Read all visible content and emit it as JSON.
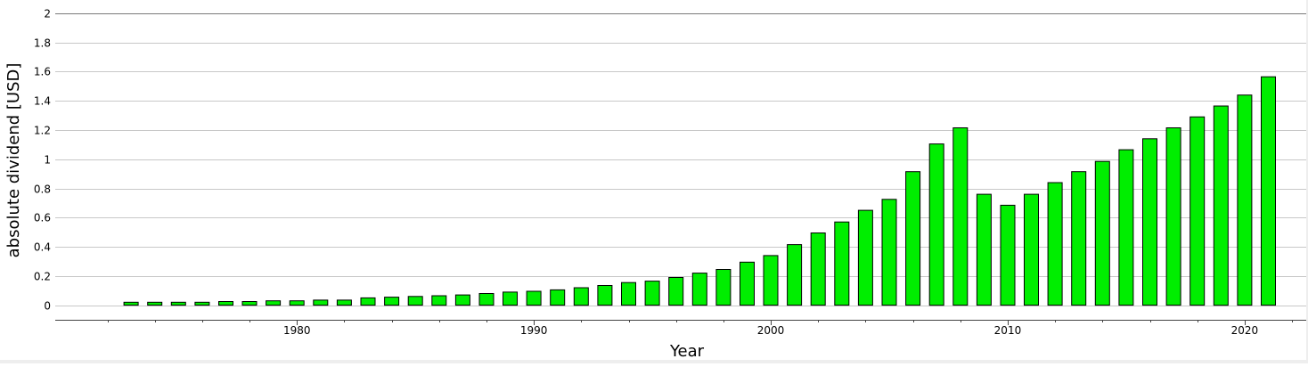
{
  "chart_data": {
    "type": "bar",
    "xlabel": "Year",
    "ylabel": "absolute dividend [USD]",
    "ylim": [
      -0.1,
      2.03
    ],
    "xlim": [
      1969.8,
      2022.6
    ],
    "yticks": [
      0,
      0.2,
      0.4,
      0.6,
      0.8,
      1,
      1.2,
      1.4,
      1.6,
      1.8,
      2
    ],
    "ytick_labels": [
      "0",
      "0.2",
      "0.4",
      "0.6",
      "0.8",
      "1",
      "1.2",
      "1.4",
      "1.6",
      "1.8",
      "2"
    ],
    "xticks": [
      1980,
      1990,
      2000,
      2010,
      2020
    ],
    "xtick_labels": [
      "1980",
      "1990",
      "2000",
      "2010",
      "2020"
    ],
    "grid": true,
    "bar_color": "#00ee00",
    "series": [
      {
        "x": [
          1973,
          1974,
          1975,
          1976,
          1977,
          1978,
          1979,
          1980,
          1981,
          1982,
          1983,
          1984,
          1985,
          1986,
          1987,
          1988,
          1989,
          1990,
          1991,
          1992,
          1993,
          1994,
          1995,
          1996,
          1997,
          1998,
          1999,
          2000,
          2001,
          2002,
          2003,
          2004,
          2005,
          2006,
          2007,
          2008,
          2009,
          2010,
          2011,
          2012,
          2013,
          2014,
          2015,
          2016,
          2017,
          2018,
          2019,
          2020,
          2021
        ],
        "values": [
          0.02,
          0.02,
          0.02,
          0.02,
          0.025,
          0.025,
          0.03,
          0.03,
          0.035,
          0.035,
          0.05,
          0.055,
          0.06,
          0.065,
          0.07,
          0.08,
          0.09,
          0.095,
          0.105,
          0.12,
          0.135,
          0.155,
          0.165,
          0.19,
          0.22,
          0.245,
          0.295,
          0.34,
          0.415,
          0.495,
          0.57,
          0.65,
          0.725,
          0.915,
          1.105,
          1.215,
          0.76,
          0.685,
          0.76,
          0.84,
          0.915,
          0.985,
          1.065,
          1.14,
          1.215,
          1.29,
          1.365,
          1.44,
          1.565
        ]
      }
    ]
  }
}
